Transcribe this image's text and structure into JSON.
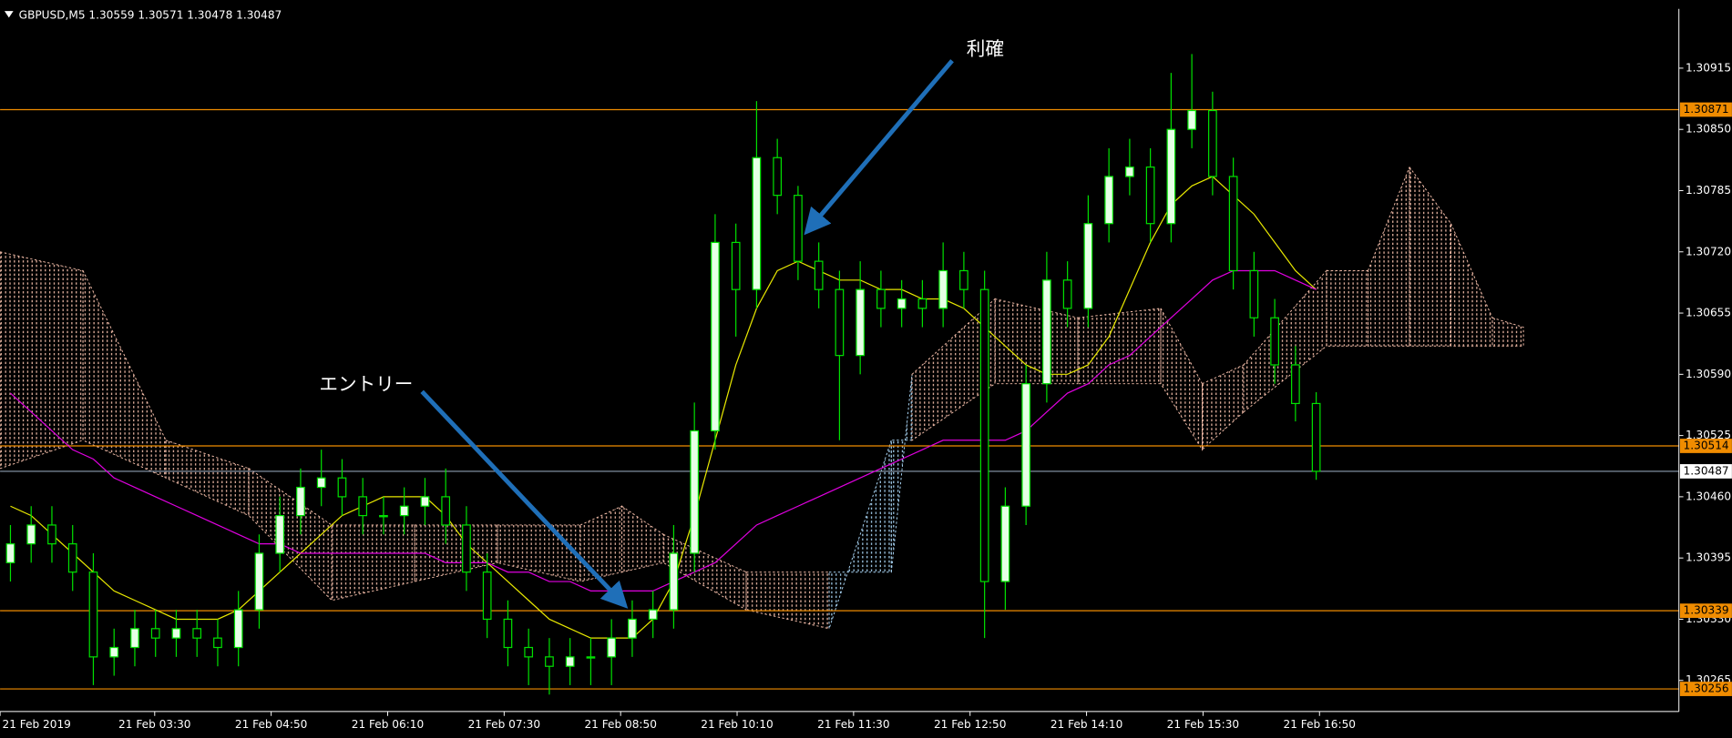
{
  "chart_data": {
    "type": "candlestick",
    "title": "GBPUSD,M5  1.30559 1.30571 1.30478 1.30487",
    "ohlc": {
      "open": [
        1.3039,
        1.3041,
        1.3043,
        1.3041,
        1.3038,
        1.3029,
        1.303,
        1.3032,
        1.3031,
        1.3032,
        1.3031,
        1.303,
        1.3034,
        1.304,
        1.3044,
        1.3047,
        1.3048,
        1.3046,
        1.3044,
        1.3044,
        1.3045,
        1.3046,
        1.3043,
        1.3038,
        1.3033,
        1.303,
        1.3029,
        1.3028,
        1.3029,
        1.3029,
        1.3031,
        1.3033,
        1.3034,
        1.304,
        1.3053,
        1.3073,
        1.3068,
        1.3082,
        1.3078,
        1.3071,
        1.3068,
        1.3061,
        1.3068,
        1.3066,
        1.3067,
        1.3066,
        1.307,
        1.3068,
        1.3037,
        1.3045,
        1.3058,
        1.3069,
        1.3066,
        1.3075,
        1.308,
        1.3081,
        1.3075,
        1.3085,
        1.3087,
        1.308,
        1.307,
        1.3065,
        1.306,
        1.30559
      ],
      "high": [
        1.3043,
        1.3045,
        1.3045,
        1.3043,
        1.304,
        1.3032,
        1.3034,
        1.3034,
        1.3034,
        1.3034,
        1.3033,
        1.3036,
        1.3042,
        1.3046,
        1.3049,
        1.3051,
        1.305,
        1.3048,
        1.3046,
        1.3047,
        1.3048,
        1.3049,
        1.3045,
        1.304,
        1.3035,
        1.3032,
        1.3031,
        1.3031,
        1.3031,
        1.3033,
        1.3035,
        1.3036,
        1.3043,
        1.3056,
        1.3076,
        1.3075,
        1.3088,
        1.3084,
        1.3079,
        1.3073,
        1.307,
        1.3071,
        1.307,
        1.3069,
        1.3069,
        1.3073,
        1.3072,
        1.307,
        1.3047,
        1.306,
        1.3072,
        1.3071,
        1.3078,
        1.3083,
        1.3084,
        1.3083,
        1.3091,
        1.3093,
        1.3089,
        1.3082,
        1.3072,
        1.3067,
        1.3062,
        1.30571
      ],
      "low": [
        1.3037,
        1.3039,
        1.3039,
        1.3036,
        1.3026,
        1.3027,
        1.3028,
        1.3029,
        1.3029,
        1.3029,
        1.3028,
        1.3028,
        1.3032,
        1.3038,
        1.3042,
        1.3045,
        1.3044,
        1.3042,
        1.3042,
        1.3042,
        1.3043,
        1.3041,
        1.3036,
        1.3031,
        1.3028,
        1.3026,
        1.3025,
        1.3026,
        1.3026,
        1.3026,
        1.3029,
        1.3031,
        1.3032,
        1.3038,
        1.3051,
        1.3063,
        1.3066,
        1.3076,
        1.3069,
        1.3066,
        1.3052,
        1.3059,
        1.3064,
        1.3064,
        1.3064,
        1.3064,
        1.3066,
        1.3031,
        1.3034,
        1.3043,
        1.3056,
        1.3064,
        1.3064,
        1.3073,
        1.3078,
        1.3073,
        1.3073,
        1.3083,
        1.3078,
        1.3068,
        1.3063,
        1.3058,
        1.3054,
        1.30478
      ],
      "close": [
        1.3041,
        1.3043,
        1.3041,
        1.3038,
        1.3029,
        1.303,
        1.3032,
        1.3031,
        1.3032,
        1.3031,
        1.303,
        1.3034,
        1.304,
        1.3044,
        1.3047,
        1.3048,
        1.3046,
        1.3044,
        1.3044,
        1.3045,
        1.3046,
        1.3043,
        1.3038,
        1.3033,
        1.303,
        1.3029,
        1.3028,
        1.3029,
        1.3029,
        1.3031,
        1.3033,
        1.3034,
        1.304,
        1.3053,
        1.3073,
        1.3068,
        1.3082,
        1.3078,
        1.3071,
        1.3068,
        1.3061,
        1.3068,
        1.3066,
        1.3067,
        1.3066,
        1.307,
        1.3068,
        1.3037,
        1.3045,
        1.3058,
        1.3069,
        1.3066,
        1.3075,
        1.308,
        1.3081,
        1.3075,
        1.3085,
        1.3087,
        1.308,
        1.307,
        1.3065,
        1.306,
        1.30559,
        1.30487
      ]
    },
    "up_color": "#e6ffe6",
    "down_color": "#000000",
    "wick_color": "#00e000",
    "series": [
      {
        "color": "#e8e800",
        "values": [
          1.3045,
          1.3044,
          1.3042,
          1.304,
          1.3038,
          1.3036,
          1.3035,
          1.3034,
          1.3033,
          1.3033,
          1.3033,
          1.3034,
          1.3036,
          1.3038,
          1.304,
          1.3042,
          1.3044,
          1.3045,
          1.3046,
          1.3046,
          1.3046,
          1.3044,
          1.3041,
          1.3039,
          1.3037,
          1.3035,
          1.3033,
          1.3032,
          1.3031,
          1.3031,
          1.3031,
          1.3033,
          1.3037,
          1.3044,
          1.3052,
          1.306,
          1.3066,
          1.307,
          1.3071,
          1.307,
          1.3069,
          1.3069,
          1.3068,
          1.3068,
          1.3067,
          1.3067,
          1.3066,
          1.3064,
          1.3062,
          1.306,
          1.3059,
          1.3059,
          1.306,
          1.3063,
          1.3068,
          1.3073,
          1.3077,
          1.3079,
          1.308,
          1.3078,
          1.3076,
          1.3073,
          1.307,
          1.3068
        ]
      },
      {
        "color": "#e000e0",
        "values": [
          1.3057,
          1.3055,
          1.3053,
          1.3051,
          1.305,
          1.3048,
          1.3047,
          1.3046,
          1.3045,
          1.3044,
          1.3043,
          1.3042,
          1.3041,
          1.3041,
          1.304,
          1.304,
          1.304,
          1.304,
          1.304,
          1.304,
          1.304,
          1.3039,
          1.3039,
          1.3039,
          1.3038,
          1.3038,
          1.3037,
          1.3037,
          1.3036,
          1.3036,
          1.3036,
          1.3036,
          1.3037,
          1.3038,
          1.3039,
          1.3041,
          1.3043,
          1.3044,
          1.3045,
          1.3046,
          1.3047,
          1.3048,
          1.3049,
          1.305,
          1.3051,
          1.3052,
          1.3052,
          1.3052,
          1.3052,
          1.3053,
          1.3055,
          1.3057,
          1.3058,
          1.306,
          1.3061,
          1.3063,
          1.3065,
          1.3067,
          1.3069,
          1.307,
          1.307,
          1.307,
          1.3069,
          1.3068
        ]
      }
    ],
    "cloud": {
      "x": [
        0,
        4,
        8,
        12,
        16,
        20,
        24,
        28,
        30,
        32,
        36,
        40,
        43,
        44,
        48,
        52,
        56,
        58,
        60,
        64,
        66,
        68,
        70,
        72,
        73.5
      ],
      "span_a": [
        1.3072,
        1.307,
        1.3052,
        1.3049,
        1.3043,
        1.3043,
        1.3043,
        1.3043,
        1.3045,
        1.3042,
        1.3038,
        1.3038,
        1.3038,
        1.3059,
        1.3067,
        1.3065,
        1.3066,
        1.3058,
        1.306,
        1.307,
        1.307,
        1.3081,
        1.3075,
        1.3065,
        1.3064
      ],
      "span_b": [
        1.3049,
        1.3052,
        1.3048,
        1.3044,
        1.3035,
        1.3037,
        1.3039,
        1.3037,
        1.3038,
        1.3039,
        1.3034,
        1.3032,
        1.3052,
        1.3052,
        1.3058,
        1.3058,
        1.3058,
        1.3051,
        1.3055,
        1.3062,
        1.3062,
        1.3062,
        1.3062,
        1.3062,
        1.3062
      ],
      "up_color": "#f2bca8",
      "down_color": "#a8d4f4"
    },
    "levels": [
      {
        "value": 1.30871,
        "color": "#f08c00"
      },
      {
        "value": 1.30514,
        "color": "#f08c00"
      },
      {
        "value": 1.30339,
        "color": "#f08c00"
      },
      {
        "value": 1.30256,
        "color": "#f08c00"
      }
    ],
    "price_line": {
      "value": 1.30487,
      "color": "#8c9cb0"
    },
    "xlim": [
      0,
      81
    ],
    "ylim": [
      1.30232,
      1.30978
    ],
    "yticks": [
      1.30915,
      {
        "value": 1.3085,
        "label": "1.30850"
      },
      1.30785,
      {
        "value": 1.3072,
        "label": "1.30720"
      },
      1.30655,
      {
        "value": 1.3059,
        "label": "1.30590"
      },
      1.30525,
      {
        "value": 1.3046,
        "label": "1.30460"
      },
      1.30395,
      {
        "value": 1.3033,
        "label": "1.30330"
      },
      1.30265
    ],
    "xticks": [
      {
        "value": 0,
        "label": "21 Feb 2019"
      },
      {
        "value": 7.46,
        "label": "21 Feb 03:30"
      },
      {
        "value": 13.08,
        "label": "21 Feb 04:50"
      },
      {
        "value": 18.7,
        "label": "21 Feb 06:10"
      },
      {
        "value": 24.32,
        "label": "21 Feb 07:30"
      },
      {
        "value": 29.94,
        "label": "21 Feb 08:50"
      },
      {
        "value": 35.56,
        "label": "21 Feb 10:10"
      },
      {
        "value": 41.18,
        "label": "21 Feb 11:30"
      },
      {
        "value": 46.8,
        "label": "21 Feb 12:50"
      },
      {
        "value": 52.42,
        "label": "21 Feb 14:10"
      },
      {
        "value": 58.04,
        "label": "21 Feb 15:30"
      },
      {
        "value": 63.66,
        "label": "21 Feb 16:50"
      }
    ],
    "annotations": [
      {
        "text": "利確"
      },
      {
        "text": "エントリー"
      }
    ]
  }
}
